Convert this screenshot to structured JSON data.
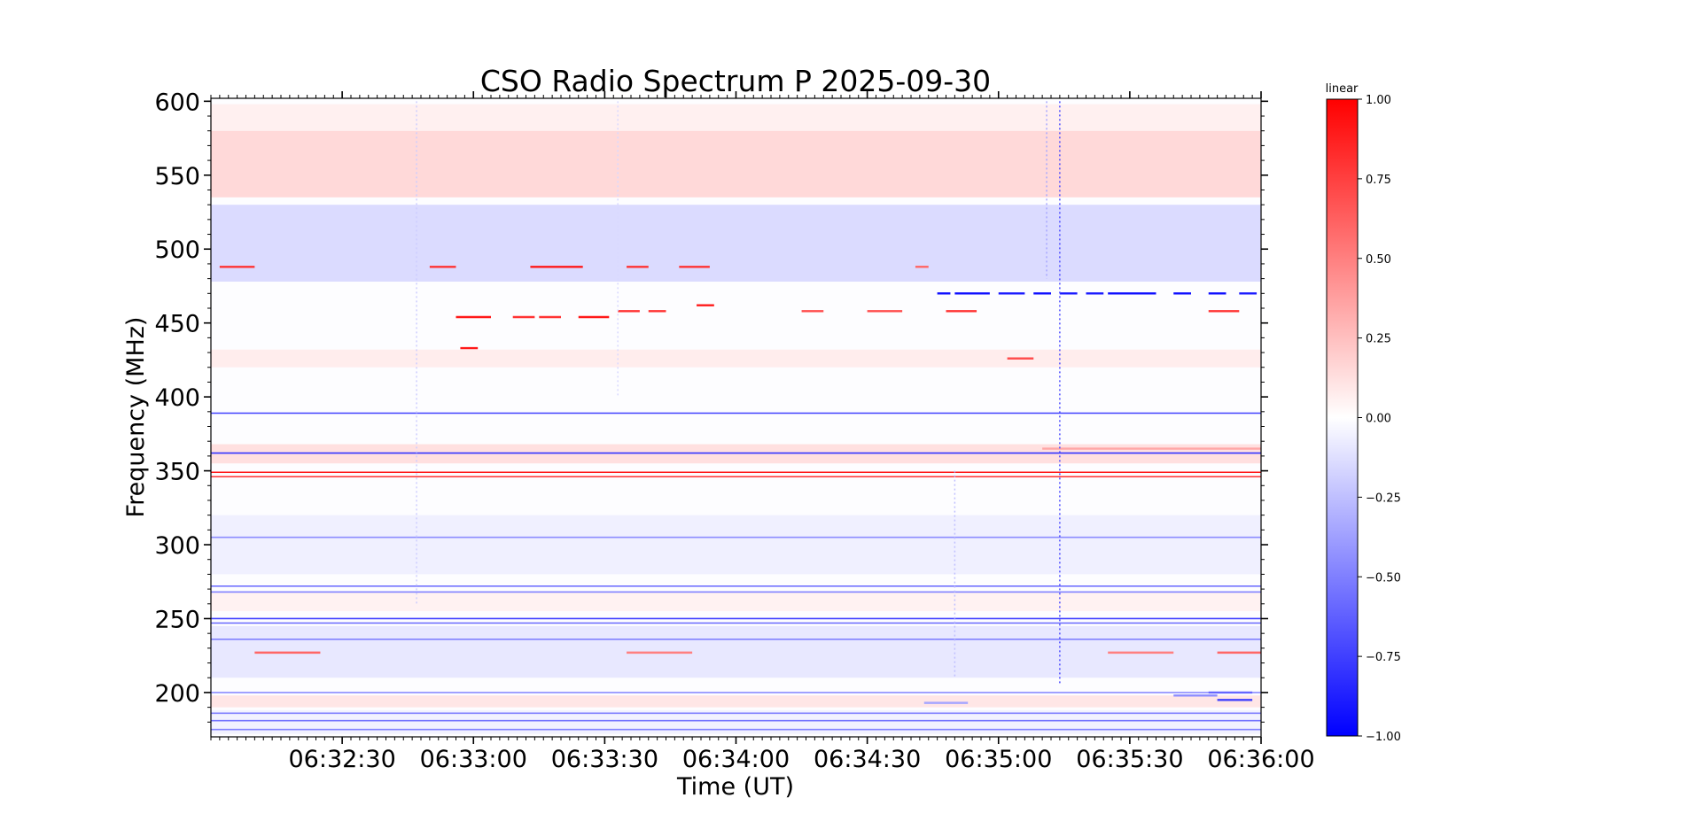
{
  "chart_data": {
    "type": "heatmap",
    "title": "CSO Radio Spectrum P 2025-09-30",
    "xlabel": "Time (UT)",
    "ylabel": "Frequency (MHz)",
    "x_range": [
      "06:32:00",
      "06:36:00"
    ],
    "x_ticks": [
      "06:32:30",
      "06:33:00",
      "06:33:30",
      "06:34:00",
      "06:34:30",
      "06:35:00",
      "06:35:30",
      "06:36:00"
    ],
    "ylim": [
      170,
      602
    ],
    "y_ticks": [
      200,
      250,
      300,
      350,
      400,
      450,
      500,
      550,
      600
    ],
    "colorbar": {
      "label": "linear",
      "range": [
        -1.0,
        1.0
      ],
      "ticks": [
        "1.00",
        "0.75",
        "0.50",
        "0.25",
        "0.00",
        "−0.25",
        "−0.50",
        "−0.75",
        "−1.00"
      ],
      "colormap": "bwr",
      "colors": [
        "#0000ff",
        "#ffffff",
        "#ff0000"
      ]
    },
    "bands": [
      {
        "f0": 535,
        "f1": 580,
        "value": 0.15
      },
      {
        "f0": 580,
        "f1": 598,
        "value": 0.06
      },
      {
        "f0": 478,
        "f1": 530,
        "value": -0.14
      },
      {
        "f0": 420,
        "f1": 432,
        "value": 0.07
      },
      {
        "f0": 355,
        "f1": 368,
        "value": 0.12
      },
      {
        "f0": 280,
        "f1": 320,
        "value": -0.06
      },
      {
        "f0": 255,
        "f1": 268,
        "value": 0.05
      },
      {
        "f0": 210,
        "f1": 245,
        "value": -0.09
      },
      {
        "f0": 190,
        "f1": 198,
        "value": 0.1
      },
      {
        "f0": 172,
        "f1": 188,
        "value": -0.05
      }
    ],
    "lines": [
      {
        "f": 389,
        "value": -0.75
      },
      {
        "f": 362,
        "value": -0.8
      },
      {
        "f": 349,
        "value": 0.9
      },
      {
        "f": 346,
        "value": 0.8
      },
      {
        "f": 305,
        "value": -0.45
      },
      {
        "f": 272,
        "value": -0.55
      },
      {
        "f": 268,
        "value": -0.5
      },
      {
        "f": 250,
        "value": -0.75
      },
      {
        "f": 247,
        "value": -0.6
      },
      {
        "f": 236,
        "value": -0.5
      },
      {
        "f": 200,
        "value": -0.45
      },
      {
        "f": 186,
        "value": -0.5
      },
      {
        "f": 181,
        "value": -0.55
      },
      {
        "f": 175,
        "value": -0.5
      }
    ],
    "segments": [
      {
        "f": 488,
        "t0": "06:32:02",
        "t1": "06:32:10",
        "value": 0.8
      },
      {
        "f": 488,
        "t0": "06:32:50",
        "t1": "06:32:56",
        "value": 0.8
      },
      {
        "f": 488,
        "t0": "06:33:13",
        "t1": "06:33:25",
        "value": 0.9
      },
      {
        "f": 488,
        "t0": "06:33:35",
        "t1": "06:33:40",
        "value": 0.8
      },
      {
        "f": 488,
        "t0": "06:33:47",
        "t1": "06:33:54",
        "value": 0.8
      },
      {
        "f": 488,
        "t0": "06:34:41",
        "t1": "06:34:44",
        "value": 0.6
      },
      {
        "f": 470,
        "t0": "06:34:46",
        "t1": "06:34:49",
        "value": -0.95
      },
      {
        "f": 470,
        "t0": "06:34:50",
        "t1": "06:34:58",
        "value": -0.95
      },
      {
        "f": 470,
        "t0": "06:35:00",
        "t1": "06:35:06",
        "value": -0.9
      },
      {
        "f": 470,
        "t0": "06:35:08",
        "t1": "06:35:12",
        "value": -0.95
      },
      {
        "f": 470,
        "t0": "06:35:14",
        "t1": "06:35:18",
        "value": -0.9
      },
      {
        "f": 470,
        "t0": "06:35:20",
        "t1": "06:35:24",
        "value": -0.9
      },
      {
        "f": 470,
        "t0": "06:35:25",
        "t1": "06:35:36",
        "value": -0.95
      },
      {
        "f": 470,
        "t0": "06:35:40",
        "t1": "06:35:44",
        "value": -0.95
      },
      {
        "f": 470,
        "t0": "06:35:48",
        "t1": "06:35:52",
        "value": -0.95
      },
      {
        "f": 470,
        "t0": "06:35:55",
        "t1": "06:35:59",
        "value": -0.9
      },
      {
        "f": 462,
        "t0": "06:33:51",
        "t1": "06:33:55",
        "value": 0.9
      },
      {
        "f": 458,
        "t0": "06:33:33",
        "t1": "06:33:38",
        "value": 0.8
      },
      {
        "f": 458,
        "t0": "06:33:40",
        "t1": "06:33:44",
        "value": 0.8
      },
      {
        "f": 458,
        "t0": "06:34:15",
        "t1": "06:34:20",
        "value": 0.7
      },
      {
        "f": 458,
        "t0": "06:34:30",
        "t1": "06:34:38",
        "value": 0.7
      },
      {
        "f": 458,
        "t0": "06:34:48",
        "t1": "06:34:55",
        "value": 0.8
      },
      {
        "f": 458,
        "t0": "06:35:48",
        "t1": "06:35:55",
        "value": 0.8
      },
      {
        "f": 454,
        "t0": "06:32:56",
        "t1": "06:33:04",
        "value": 0.9
      },
      {
        "f": 454,
        "t0": "06:33:09",
        "t1": "06:33:14",
        "value": 0.8
      },
      {
        "f": 454,
        "t0": "06:33:15",
        "t1": "06:33:20",
        "value": 0.8
      },
      {
        "f": 454,
        "t0": "06:33:24",
        "t1": "06:33:31",
        "value": 0.9
      },
      {
        "f": 433,
        "t0": "06:32:57",
        "t1": "06:33:01",
        "value": 0.9
      },
      {
        "f": 426,
        "t0": "06:35:02",
        "t1": "06:35:08",
        "value": 0.7
      },
      {
        "f": 365,
        "t0": "06:35:10",
        "t1": "06:36:00",
        "value": 0.35
      },
      {
        "f": 227,
        "t0": "06:32:10",
        "t1": "06:32:25",
        "value": 0.6
      },
      {
        "f": 227,
        "t0": "06:33:35",
        "t1": "06:33:50",
        "value": 0.5
      },
      {
        "f": 227,
        "t0": "06:35:25",
        "t1": "06:35:40",
        "value": 0.5
      },
      {
        "f": 227,
        "t0": "06:35:50",
        "t1": "06:36:00",
        "value": 0.6
      },
      {
        "f": 200,
        "t0": "06:35:48",
        "t1": "06:35:58",
        "value": -0.6
      },
      {
        "f": 198,
        "t0": "06:35:40",
        "t1": "06:35:50",
        "value": -0.45
      },
      {
        "f": 195,
        "t0": "06:35:50",
        "t1": "06:35:58",
        "value": -0.75
      },
      {
        "f": 193,
        "t0": "06:34:43",
        "t1": "06:34:53",
        "value": -0.35
      }
    ],
    "vertical_spikes": [
      {
        "t": "06:35:14",
        "f0": 205,
        "f1": 600,
        "value": -0.7
      },
      {
        "t": "06:35:11",
        "f0": 480,
        "f1": 600,
        "value": -0.35
      },
      {
        "t": "06:34:50",
        "f0": 210,
        "f1": 350,
        "value": -0.25
      },
      {
        "t": "06:32:47",
        "f0": 260,
        "f1": 600,
        "value": -0.2
      },
      {
        "t": "06:33:33",
        "f0": 400,
        "f1": 600,
        "value": -0.15
      }
    ]
  }
}
